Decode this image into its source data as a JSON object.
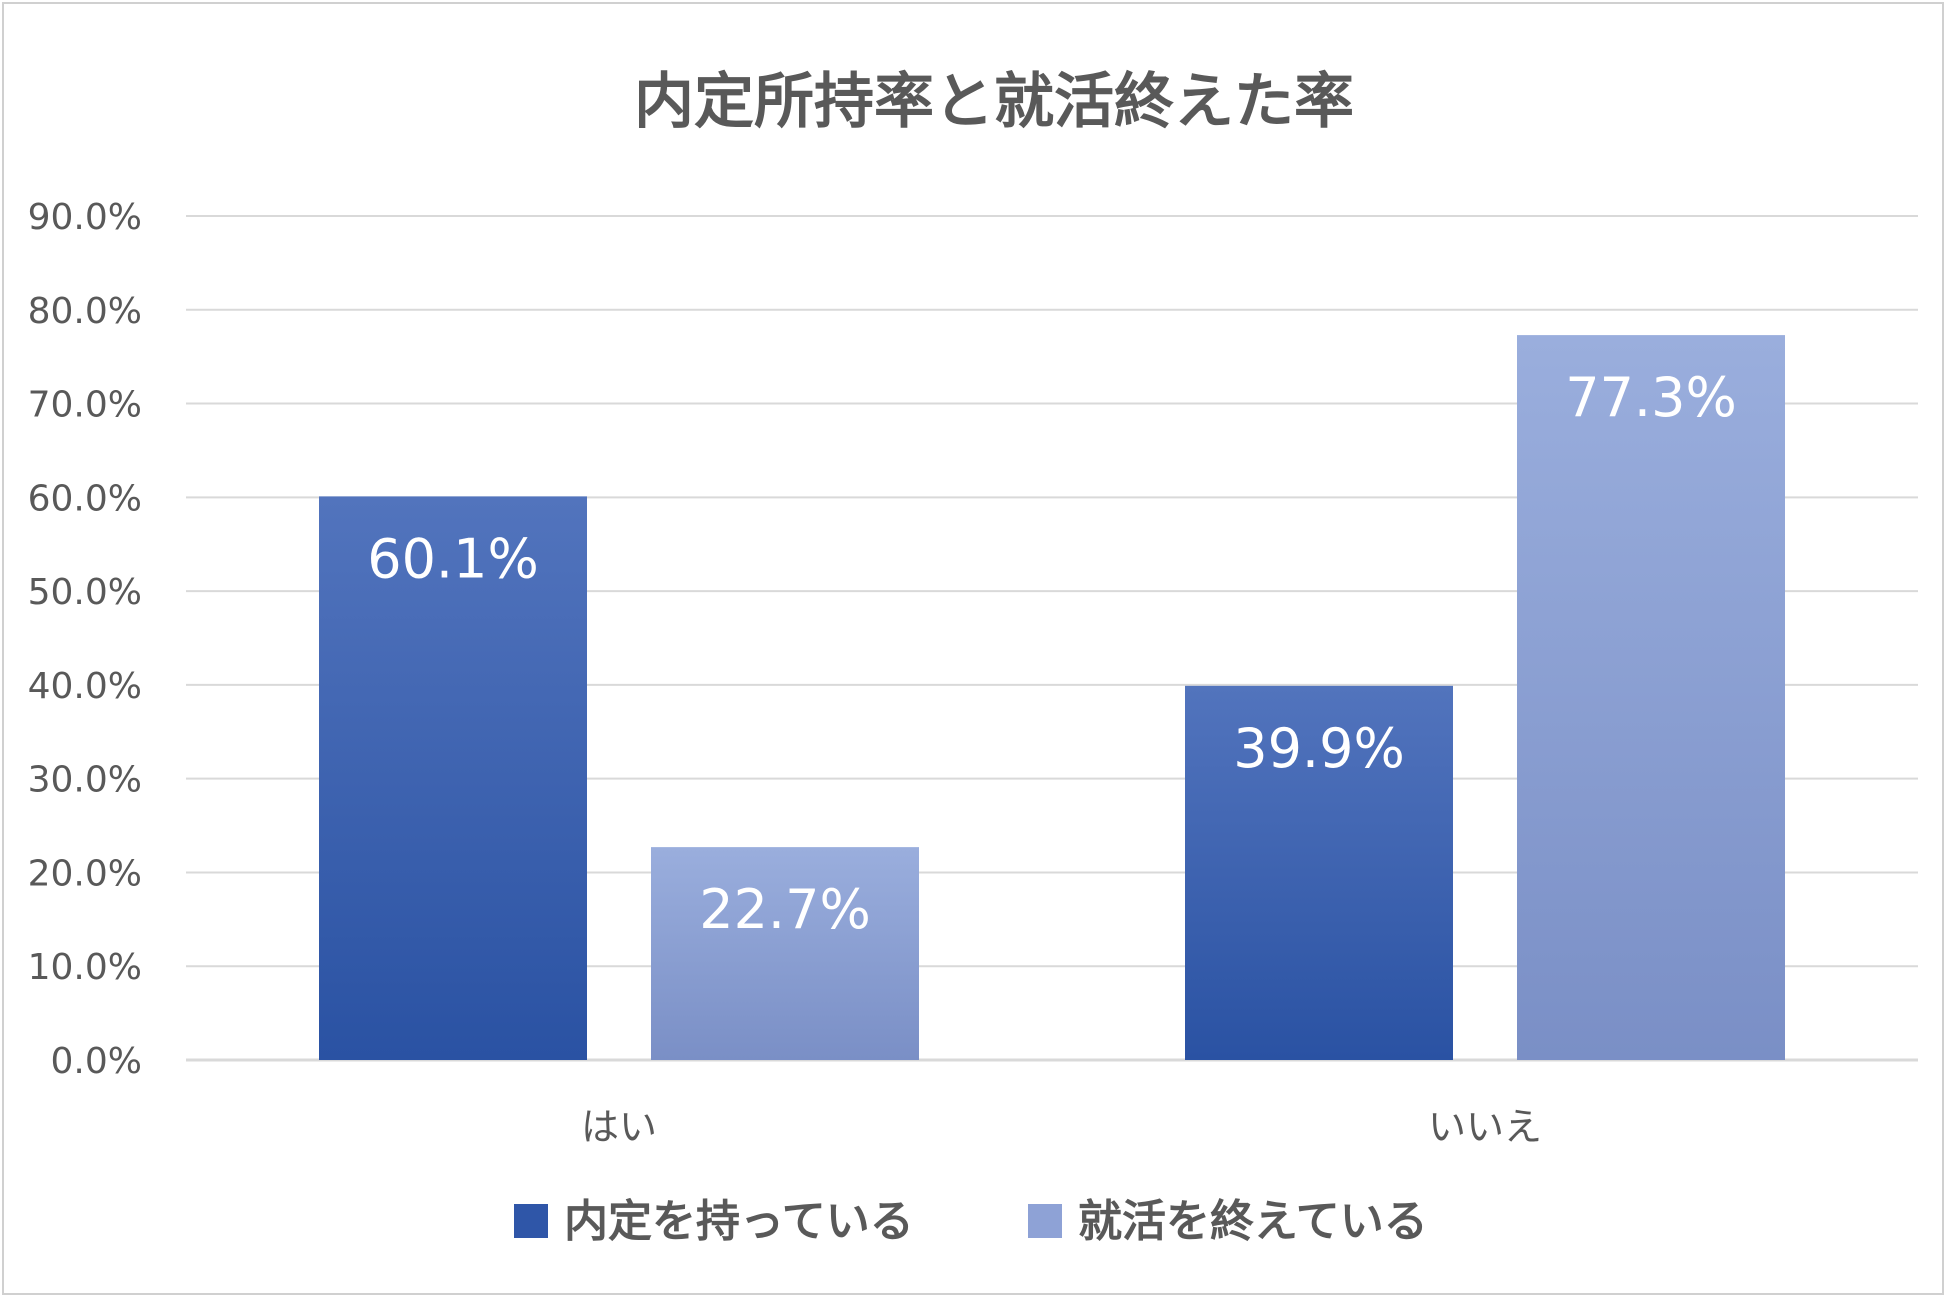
{
  "chart_data": {
    "type": "bar",
    "title": "内定所持率と就活終えた率",
    "categories": [
      "はい",
      "いいえ"
    ],
    "series": [
      {
        "name": "内定を持っている",
        "values": [
          60.1,
          39.9
        ],
        "data_labels": [
          "60.1%",
          "39.9%"
        ],
        "color_top": "#5274bd",
        "color_bottom": "#2a52a3",
        "legend_color": "#2f56a8"
      },
      {
        "name": "就活を終えている",
        "values": [
          22.7,
          77.3
        ],
        "data_labels": [
          "22.7%",
          "77.3%"
        ],
        "color_top": "#9aaedd",
        "color_bottom": "#7a8fc6",
        "legend_color": "#8ea2d6"
      }
    ],
    "y_ticks": [
      "0.0%",
      "10.0%",
      "20.0%",
      "30.0%",
      "40.0%",
      "50.0%",
      "60.0%",
      "70.0%",
      "80.0%",
      "90.0%"
    ],
    "ylim": [
      0,
      90
    ],
    "grid": true,
    "legend_position": "bottom",
    "text_color": "#595959",
    "grid_color": "#d9d9d9"
  }
}
